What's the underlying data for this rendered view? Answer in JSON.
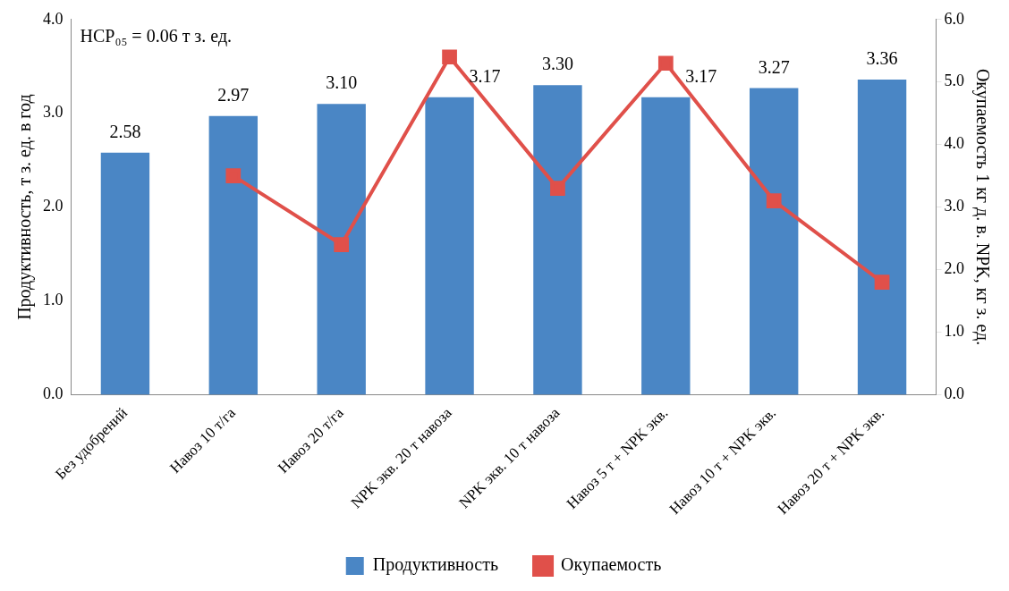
{
  "chart_data": {
    "type": "bar",
    "categories": [
      "Без удобрений",
      "Навоз 10 т/га",
      "Навоз 20 т/га",
      "NPK экв. 20 т навоза",
      "NPK экв. 10 т навоза",
      "Навоз 5 т + NPK экв.",
      "Навоз 10 т + NPK экв.",
      "Навоз 20 т + NPK экв."
    ],
    "series": [
      {
        "name": "Продуктивность",
        "color": "#4a86c5",
        "values": [
          2.58,
          2.97,
          3.1,
          3.17,
          3.3,
          3.17,
          3.27,
          3.36
        ],
        "value_labels": [
          "2.58",
          "2.97",
          "3.10",
          "3.17",
          "3.30",
          "3.17",
          "3.27",
          "3.36"
        ]
      },
      {
        "name": "Окупаемость",
        "type": "line",
        "axis": "y2",
        "color": "#e0504a",
        "values": [
          null,
          3.5,
          2.4,
          5.4,
          3.3,
          5.3,
          3.1,
          1.8
        ]
      }
    ],
    "ylabel": "Продуктивность, т з. ед. в год",
    "y2label": "Окупаемость 1 кг д. в. NPK, кг з. ед.",
    "ylim": [
      0,
      4
    ],
    "yticks": [
      {
        "value": 0,
        "label": "0.0"
      },
      {
        "value": 1,
        "label": "1.0"
      },
      {
        "value": 2,
        "label": "2.0"
      },
      {
        "value": 3,
        "label": "3.0"
      },
      {
        "value": 4,
        "label": "4.0"
      }
    ],
    "y2lim": [
      0,
      6
    ],
    "y2ticks": [
      {
        "value": 0,
        "label": "0.0"
      },
      {
        "value": 1,
        "label": "1.0"
      },
      {
        "value": 2,
        "label": "2.0"
      },
      {
        "value": 3,
        "label": "3.0"
      },
      {
        "value": 4,
        "label": "4.0"
      },
      {
        "value": 5,
        "label": "5.0"
      },
      {
        "value": 6,
        "label": "6.0"
      }
    ],
    "annotations": [
      "НСР₀₅ = 0.06 т з. ед."
    ],
    "legend": "bottom",
    "grid": false,
    "marker": "square",
    "line_style": "solid"
  }
}
